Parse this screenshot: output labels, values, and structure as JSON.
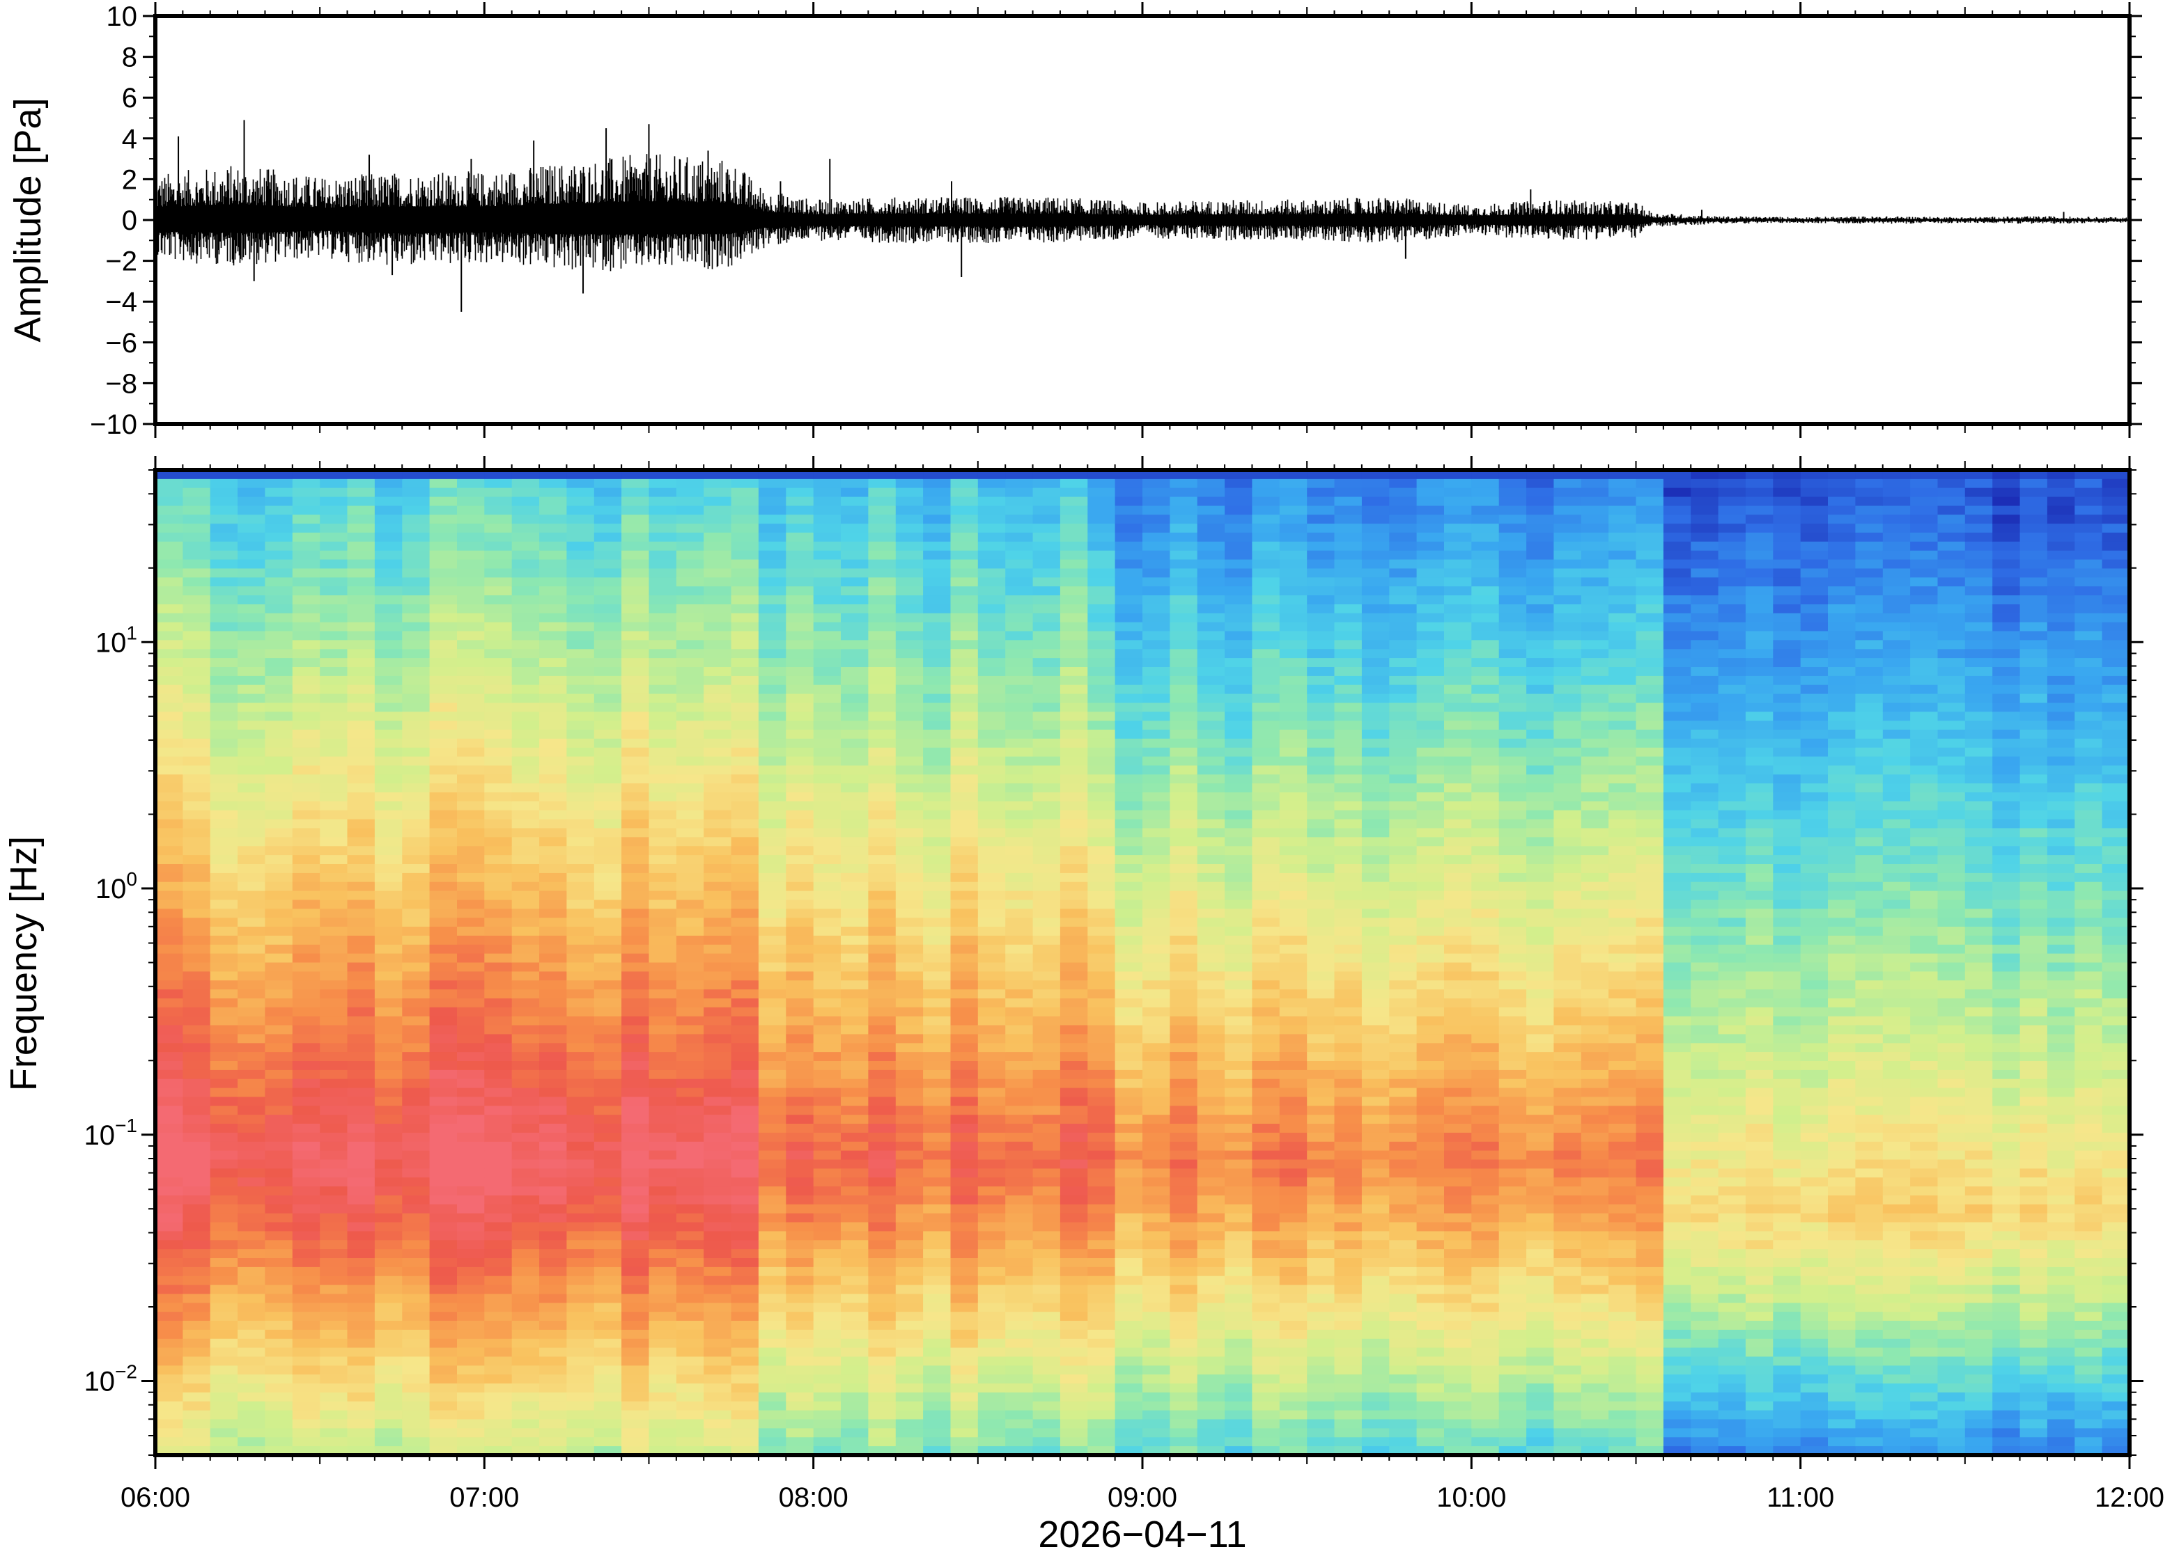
{
  "chart_data": [
    {
      "type": "line",
      "panel": "waveform",
      "ylabel": "Amplitude [Pa]",
      "ylim": [
        -10,
        10
      ],
      "yticks": [
        10,
        8,
        6,
        4,
        2,
        0,
        -2,
        -4,
        -6,
        -8,
        -10
      ],
      "ytick_labels": [
        "10",
        "8",
        "6",
        "4",
        "2",
        "0",
        "−2",
        "−4",
        "−6",
        "−8",
        "−10"
      ],
      "xlim": [
        "06:00",
        "12:00"
      ],
      "envelope": {
        "time_h": [
          6.0,
          6.25,
          6.5,
          6.75,
          7.0,
          7.25,
          7.5,
          7.75,
          7.85,
          8.0,
          8.25,
          8.5,
          8.75,
          9.0,
          9.25,
          9.5,
          9.75,
          10.0,
          10.25,
          10.5,
          10.55,
          10.75,
          11.0,
          11.25,
          11.5,
          11.75,
          12.0
        ],
        "max_pa": [
          1.8,
          2.2,
          1.7,
          1.9,
          1.9,
          2.3,
          2.6,
          2.4,
          1.2,
          0.8,
          0.9,
          0.9,
          0.9,
          0.7,
          0.8,
          0.8,
          0.9,
          0.6,
          0.8,
          0.7,
          0.3,
          0.15,
          0.12,
          0.15,
          0.12,
          0.15,
          0.1
        ],
        "min_pa": [
          -1.6,
          -1.8,
          -1.5,
          -1.9,
          -1.7,
          -2.0,
          -2.0,
          -1.9,
          -1.1,
          -0.8,
          -0.9,
          -0.9,
          -0.9,
          -0.7,
          -0.8,
          -0.8,
          -0.9,
          -0.6,
          -0.8,
          -0.7,
          -0.3,
          -0.15,
          -0.12,
          -0.15,
          -0.12,
          -0.15,
          -0.1
        ]
      },
      "spikes": [
        {
          "t": 6.07,
          "v": 4.1
        },
        {
          "t": 6.27,
          "v": 4.9
        },
        {
          "t": 6.3,
          "v": -3.0
        },
        {
          "t": 6.65,
          "v": 3.2
        },
        {
          "t": 6.72,
          "v": -2.7
        },
        {
          "t": 6.93,
          "v": -4.5
        },
        {
          "t": 6.96,
          "v": 3.0
        },
        {
          "t": 7.15,
          "v": 3.9
        },
        {
          "t": 7.3,
          "v": -3.6
        },
        {
          "t": 7.37,
          "v": 4.5
        },
        {
          "t": 7.5,
          "v": 4.7
        },
        {
          "t": 7.68,
          "v": 3.4
        },
        {
          "t": 7.9,
          "v": 1.9
        },
        {
          "t": 8.05,
          "v": 3.0
        },
        {
          "t": 8.42,
          "v": 1.9
        },
        {
          "t": 8.45,
          "v": -2.8
        },
        {
          "t": 9.8,
          "v": -1.9
        },
        {
          "t": 10.18,
          "v": 1.5
        },
        {
          "t": 10.7,
          "v": 0.5
        },
        {
          "t": 11.8,
          "v": 0.4
        }
      ]
    },
    {
      "type": "heatmap",
      "panel": "spectrogram",
      "ylabel": "Frequency [Hz]",
      "xlabel": "2026−04−11",
      "yscale": "log",
      "ylim": [
        0.005,
        50
      ],
      "yticks": [
        0.01,
        0.1,
        1,
        10
      ],
      "ytick_labels": [
        {
          "base": "10",
          "exp": "−2"
        },
        {
          "base": "10",
          "exp": "−1"
        },
        {
          "base": "10",
          "exp": "0"
        },
        {
          "base": "10",
          "exp": "1"
        }
      ],
      "xticks": [
        "06:00",
        "07:00",
        "08:00",
        "09:00",
        "10:00",
        "11:00",
        "12:00"
      ],
      "xlim_h": [
        6,
        12
      ],
      "colormap": [
        "#1b2cb5",
        "#2f6ee6",
        "#39a6f0",
        "#4fd3e8",
        "#8ee8b0",
        "#d2ef8c",
        "#f6e68a",
        "#f9c15e",
        "#f78f4a",
        "#ee5a4c",
        "#f46a72"
      ],
      "regimes": [
        {
          "from_h": 6.0,
          "to_h": 7.87,
          "peak_freq_hz": 0.08,
          "peak_level": 1.0,
          "top_level": 0.3
        },
        {
          "from_h": 7.87,
          "to_h": 8.8,
          "peak_freq_hz": 0.08,
          "peak_level": 0.88,
          "top_level": 0.24
        },
        {
          "from_h": 8.8,
          "to_h": 10.55,
          "peak_freq_hz": 0.08,
          "peak_level": 0.85,
          "top_level": 0.15
        },
        {
          "from_h": 10.55,
          "to_h": 12.0,
          "peak_freq_hz": 0.05,
          "peak_level": 0.62,
          "top_level": 0.02
        }
      ]
    }
  ]
}
